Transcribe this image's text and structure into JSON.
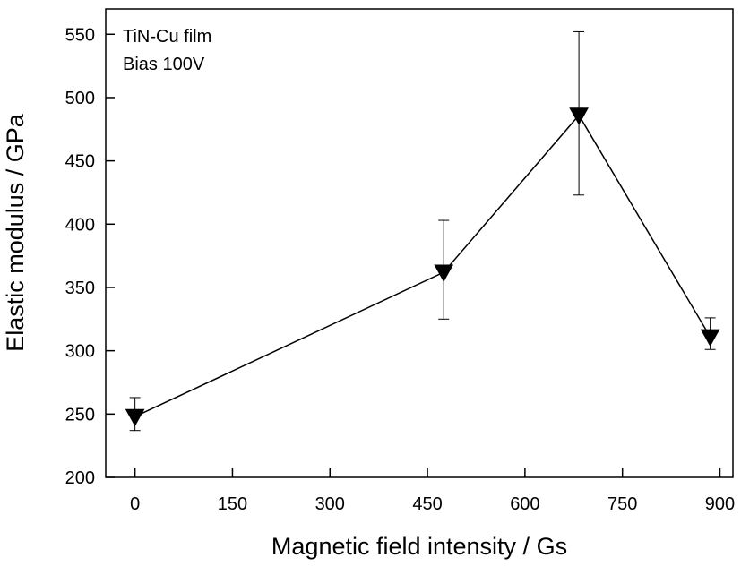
{
  "chart_data": {
    "type": "line",
    "annotations": [
      "TiN-Cu film",
      "Bias 100V"
    ],
    "xlabel": "Magnetic field intensity / Gs",
    "ylabel": "Elastic modulus / GPa",
    "xlim": [
      -45,
      920
    ],
    "ylim": [
      200,
      570
    ],
    "x_ticks": [
      0,
      150,
      300,
      450,
      600,
      750,
      900
    ],
    "y_ticks": [
      200,
      250,
      300,
      350,
      400,
      450,
      500,
      550
    ],
    "grid": false,
    "marker": "filled-down-triangle",
    "series": [
      {
        "x": [
          0,
          475,
          683,
          885
        ],
        "y": [
          248,
          362,
          486,
          311
        ],
        "error_low": [
          237,
          325,
          423,
          301
        ],
        "error_high": [
          263,
          403,
          552,
          326
        ]
      }
    ],
    "colors": {
      "line": "#000000",
      "marker": "#000000",
      "axis": "#000000",
      "background": "#ffffff"
    }
  }
}
